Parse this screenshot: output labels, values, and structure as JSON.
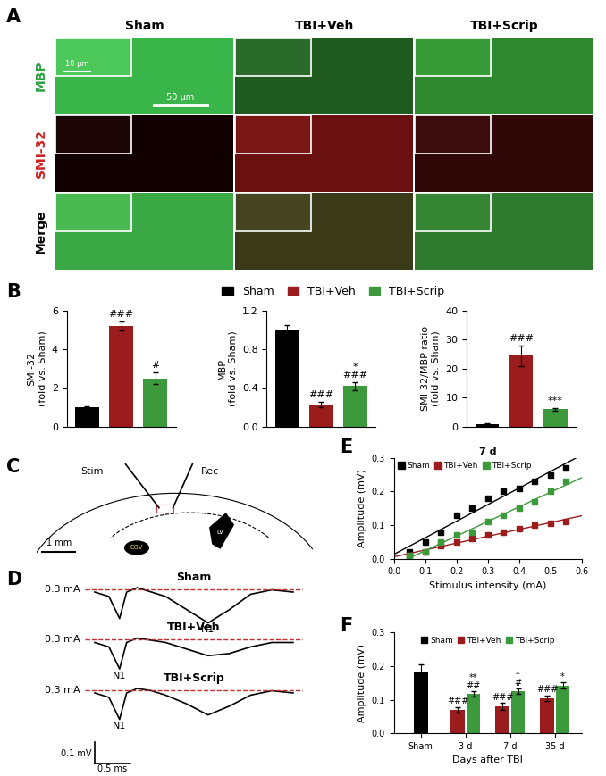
{
  "panel_labels": [
    "A",
    "B",
    "C",
    "D",
    "E",
    "F"
  ],
  "images": {
    "columns": [
      "Sham",
      "TBI+Veh",
      "TBI+Scrip"
    ],
    "rows": [
      "MBP",
      "SMI-32",
      "Merge"
    ],
    "scale_bars": [
      "10 µm",
      "50 µm"
    ]
  },
  "diagram": {
    "stim": "Stim",
    "rec": "Rec",
    "scale": "1 mm",
    "lv": "LV",
    "d3v": "D3V"
  },
  "traces": {
    "x": [
      0,
      0.2,
      0.35,
      0.45,
      0.6,
      0.8,
      1.0,
      1.3,
      1.6,
      1.9,
      2.2,
      2.5,
      2.8
    ],
    "series": [
      {
        "name": "Sham",
        "values": [
          0,
          -0.02,
          -0.12,
          0.0,
          0.02,
          0.0,
          -0.02,
          -0.08,
          -0.14,
          -0.08,
          -0.01,
          0.01,
          0.0
        ]
      },
      {
        "name": "TBI+Veh",
        "values": [
          0,
          -0.02,
          -0.12,
          0.0,
          0.02,
          0.01,
          0.0,
          -0.03,
          -0.06,
          -0.05,
          -0.02,
          0.0,
          0.0
        ]
      },
      {
        "name": "TBI+Scrip",
        "values": [
          0,
          -0.02,
          -0.12,
          0.0,
          0.02,
          0.01,
          -0.01,
          -0.05,
          -0.1,
          -0.06,
          -0.01,
          0.01,
          0.0
        ]
      }
    ],
    "stimulus": "0.3 mA",
    "peak": "N1",
    "scale_bar": {
      "y": 0.1,
      "y_label": "0.1 mV",
      "x": 0.5,
      "x_label": "0.5 ms"
    }
  },
  "chart_data": [
    {
      "type": "bar",
      "categories": [
        "Sham",
        "TBI+Veh",
        "TBI+Scrip"
      ],
      "colors": [
        "#000000",
        "#9b1c1c",
        "#3c9a3c"
      ],
      "values": [
        1.0,
        5.2,
        2.5
      ],
      "errors": [
        0.05,
        0.25,
        0.3
      ],
      "ylabel": "SMI-32\n(fold vs. Sham)",
      "ylim": [
        0,
        6
      ],
      "yticks": [
        0,
        2,
        4,
        6
      ],
      "tick_labels": "y",
      "legend": "upper center",
      "annotations": [
        {
          "index": 1,
          "text": "###"
        },
        {
          "index": 2,
          "text": "#"
        }
      ]
    },
    {
      "type": "bar",
      "categories": [
        "Sham",
        "TBI+Veh",
        "TBI+Scrip"
      ],
      "colors": [
        "#000000",
        "#9b1c1c",
        "#3c9a3c"
      ],
      "values": [
        1.0,
        0.23,
        0.42
      ],
      "errors": [
        0.05,
        0.03,
        0.04
      ],
      "ylabel": "MBP\n(fold vs. Sham)",
      "ylim": [
        0,
        1.2
      ],
      "yticks": [
        0.0,
        0.4,
        0.8,
        1.2
      ],
      "tick_labels": "y",
      "annotations": [
        {
          "index": 1,
          "text": "###"
        },
        {
          "index": 2,
          "text": "*\n###"
        }
      ]
    },
    {
      "type": "bar",
      "categories": [
        "Sham",
        "TBI+Veh",
        "TBI+Scrip"
      ],
      "colors": [
        "#000000",
        "#9b1c1c",
        "#3c9a3c"
      ],
      "values": [
        1.0,
        24.5,
        6.0
      ],
      "errors": [
        0.1,
        3.5,
        0.5
      ],
      "ylabel": "SMI-32/MBP ratio\n(fold vs. Sham)",
      "ylim": [
        0,
        40
      ],
      "yticks": [
        0,
        10,
        20,
        30,
        40
      ],
      "tick_labels": "y",
      "annotations": [
        {
          "index": 1,
          "text": "###"
        },
        {
          "index": 2,
          "text": "***"
        }
      ]
    },
    {
      "type": "scatter",
      "title": "7 d",
      "xlabel": "Stimulus intensity (mA)",
      "ylabel": "Amplitude (mV)",
      "x": [
        0.05,
        0.1,
        0.15,
        0.2,
        0.25,
        0.3,
        0.35,
        0.4,
        0.45,
        0.5,
        0.55
      ],
      "xlim": [
        0,
        0.6
      ],
      "xticks": [
        0.0,
        0.1,
        0.2,
        0.3,
        0.4,
        0.5,
        0.6
      ],
      "ylim": [
        0,
        0.3
      ],
      "yticks": [
        0.0,
        0.1,
        0.2,
        0.3
      ],
      "legend": "upper left",
      "series": [
        {
          "name": "Sham",
          "color": "#000000",
          "marker": "square",
          "line_style": "solid",
          "values": [
            0.02,
            0.05,
            0.08,
            0.13,
            0.15,
            0.18,
            0.2,
            0.21,
            0.23,
            0.25,
            0.27
          ]
        },
        {
          "name": "TBI+Veh",
          "color": "#9b1c1c",
          "marker": "square",
          "line_style": "solid",
          "values": [
            0.01,
            0.02,
            0.04,
            0.05,
            0.06,
            0.07,
            0.08,
            0.09,
            0.1,
            0.105,
            0.11
          ]
        },
        {
          "name": "TBI+Scrip",
          "color": "#3c9a3c",
          "marker": "square",
          "line_style": "solid",
          "values": [
            0.01,
            0.02,
            0.05,
            0.07,
            0.08,
            0.11,
            0.13,
            0.15,
            0.17,
            0.2,
            0.23
          ]
        }
      ]
    },
    {
      "type": "bar",
      "xlabel": "Days after TBI",
      "ylabel": "Amplitude (mV)",
      "categories": [
        "Sham",
        "3 d",
        "7 d",
        "35 d"
      ],
      "ylim": [
        0,
        0.3
      ],
      "yticks": [
        0.0,
        0.1,
        0.2,
        0.3
      ],
      "legend": "upper center",
      "series": [
        {
          "name": "Sham",
          "color": "#000000",
          "values": [
            0.185,
            null,
            null,
            null
          ],
          "errors": [
            0.02,
            null,
            null,
            null
          ]
        },
        {
          "name": "TBI+Veh",
          "color": "#9b1c1c",
          "values": [
            null,
            0.07,
            0.08,
            0.105
          ],
          "errors": [
            null,
            0.008,
            0.01,
            0.008
          ]
        },
        {
          "name": "TBI+Scrip",
          "color": "#3c9a3c",
          "values": [
            null,
            0.117,
            0.125,
            0.142
          ],
          "errors": [
            null,
            0.008,
            0.008,
            0.01
          ]
        }
      ],
      "annotations": [
        {
          "category": 1,
          "series": "TBI+Veh",
          "text": "###"
        },
        {
          "category": 1,
          "series": "TBI+Scrip",
          "text": "**\n##"
        },
        {
          "category": 2,
          "series": "TBI+Veh",
          "text": "###"
        },
        {
          "category": 2,
          "series": "TBI+Scrip",
          "text": "*\n#"
        },
        {
          "category": 3,
          "series": "TBI+Veh",
          "text": "###"
        },
        {
          "category": 3,
          "series": "TBI+Scrip",
          "text": "*"
        }
      ]
    }
  ]
}
